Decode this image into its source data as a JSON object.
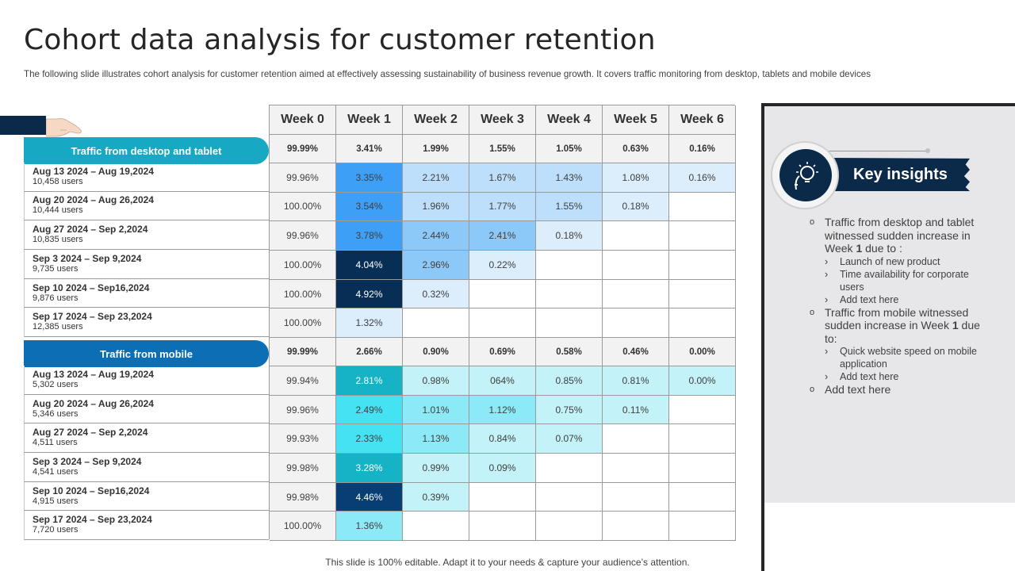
{
  "title": "Cohort data analysis for customer retention",
  "subtitle": "The following slide illustrates cohort analysis for customer retention aimed at effectively assessing sustainability of business revenue growth. It covers traffic monitoring from desktop, tablets and mobile devices",
  "footer": "This slide is 100% editable. Adapt it to your needs & capture your audience’s attention.",
  "weeks": [
    "Week 0",
    "Week 1",
    "Week 2",
    "Week 3",
    "Week 4",
    "Week 5",
    "Week 6"
  ],
  "groups": [
    {
      "label": "Traffic from desktop and tablet",
      "summary": [
        "99.99%",
        "3.41%",
        "1.99%",
        "1.55%",
        "1.05%",
        "0.63%",
        "0.16%"
      ],
      "rows": [
        {
          "date": "Aug 13 2024 – Aug 19,2024",
          "users": "10,458 users",
          "values": [
            "99.96%",
            "3.35%",
            "2.21%",
            "1.67%",
            "1.43%",
            "1.08%",
            "0.16%"
          ]
        },
        {
          "date": "Aug 20 2024 – Aug 26,2024",
          "users": "10,444 users",
          "values": [
            "100.00%",
            "3.54%",
            "1.96%",
            "1.77%",
            "1.55%",
            "0.18%",
            ""
          ]
        },
        {
          "date": "Aug 27 2024 – Sep 2,2024",
          "users": "10,835 users",
          "values": [
            "99.96%",
            "3.78%",
            "2.44%",
            "2.41%",
            "0.18%",
            "",
            ""
          ]
        },
        {
          "date": "Sep 3 2024 – Sep 9,2024",
          "users": "9,735 users",
          "values": [
            "100.00%",
            "4.04%",
            "2.96%",
            "0.22%",
            "",
            "",
            ""
          ]
        },
        {
          "date": "Sep 10 2024 – Sep16,2024",
          "users": "9,876 users",
          "values": [
            "100.00%",
            "4.92%",
            "0.32%",
            "",
            "",
            "",
            ""
          ]
        },
        {
          "date": "Sep 17 2024 – Sep 23,2024",
          "users": "12,385 users",
          "values": [
            "100.00%",
            "1.32%",
            "",
            "",
            "",
            "",
            ""
          ]
        }
      ],
      "colors": [
        [
          "#f2f2f2",
          "#3d9ff5",
          "#bddffc",
          "#bddffc",
          "#bddffc",
          "#dcedfb",
          "#dcedfb"
        ],
        [
          "#f2f2f2",
          "#3d9ff5",
          "#bddffc",
          "#bddffc",
          "#bddffc",
          "#dcedfb",
          "#ffffff"
        ],
        [
          "#f2f2f2",
          "#3d9ff5",
          "#8cc8f8",
          "#8cc8f8",
          "#dcedfb",
          "#ffffff",
          "#ffffff"
        ],
        [
          "#f2f2f2",
          "#072e55",
          "#8cc8f8",
          "#dcedfb",
          "#ffffff",
          "#ffffff",
          "#ffffff"
        ],
        [
          "#f2f2f2",
          "#072e55",
          "#dcedfb",
          "#ffffff",
          "#ffffff",
          "#ffffff",
          "#ffffff"
        ],
        [
          "#f2f2f2",
          "#dcedfb",
          "#ffffff",
          "#ffffff",
          "#ffffff",
          "#ffffff",
          "#ffffff"
        ]
      ]
    },
    {
      "label": "Traffic from mobile",
      "summary": [
        "99.99%",
        "2.66%",
        "0.90%",
        "0.69%",
        "0.58%",
        "0.46%",
        "0.00%"
      ],
      "rows": [
        {
          "date": "Aug 13 2024 – Aug 19,2024",
          "users": "5,302 users",
          "values": [
            "99.94%",
            "2.81%",
            "0.98%",
            "064%",
            "0.85%",
            "0.81%",
            "0.00%"
          ]
        },
        {
          "date": "Aug 20 2024 – Aug 26,2024",
          "users": "5,346 users",
          "values": [
            "99.96%",
            "2.49%",
            "1.01%",
            "1.12%",
            "0.75%",
            "0.11%",
            ""
          ]
        },
        {
          "date": "Aug 27 2024 – Sep 2,2024",
          "users": "4,511 users",
          "values": [
            "99.93%",
            "2.33%",
            "1.13%",
            "0.84%",
            "0.07%",
            "",
            ""
          ]
        },
        {
          "date": "Sep 3 2024 – Sep 9,2024",
          "users": "4,541 users",
          "values": [
            "99.98%",
            "3.28%",
            "0.99%",
            "0.09%",
            "",
            "",
            ""
          ]
        },
        {
          "date": "Sep 10 2024 – Sep16,2024",
          "users": "4,915 users",
          "values": [
            "99.98%",
            "4.46%",
            "0.39%",
            "",
            "",
            "",
            ""
          ]
        },
        {
          "date": "Sep 17 2024 – Sep 23,2024",
          "users": "7,720 users",
          "values": [
            "100.00%",
            "1.36%",
            "",
            "",
            "",
            "",
            ""
          ]
        }
      ],
      "colors": [
        [
          "#f2f2f2",
          "#16b2c6",
          "#c3f2f8",
          "#c3f2f8",
          "#c3f2f8",
          "#c3f2f8",
          "#c3f2f8"
        ],
        [
          "#f2f2f2",
          "#45e2f4",
          "#8ceaf6",
          "#8ceaf6",
          "#c3f2f8",
          "#c3f2f8",
          "#ffffff"
        ],
        [
          "#f2f2f2",
          "#45e2f4",
          "#8ceaf6",
          "#c3f2f8",
          "#c3f2f8",
          "#ffffff",
          "#ffffff"
        ],
        [
          "#f2f2f2",
          "#16b2c6",
          "#c3f2f8",
          "#c3f2f8",
          "#ffffff",
          "#ffffff",
          "#ffffff"
        ],
        [
          "#f2f2f2",
          "#073e74",
          "#c3f2f8",
          "#ffffff",
          "#ffffff",
          "#ffffff",
          "#ffffff"
        ],
        [
          "#f2f2f2",
          "#8ceaf6",
          "#ffffff",
          "#ffffff",
          "#ffffff",
          "#ffffff",
          "#ffffff"
        ]
      ]
    }
  ],
  "insights": {
    "title": "Key insights",
    "icon": "lightbulb-head-icon",
    "items": [
      {
        "pre": "Traffic from desktop and tablet witnessed sudden increase in Week ",
        "bold": "1",
        "post": " due to :",
        "subs": [
          "Launch of new product",
          "Time availability for corporate users",
          "Add text here"
        ]
      },
      {
        "pre": "Traffic from mobile witnessed sudden increase in Week ",
        "bold": "1",
        "post": " due to:",
        "subs": [
          "Quick website speed on mobile application",
          "Add text here"
        ]
      },
      {
        "pre": "Add text here",
        "bold": "",
        "post": "",
        "subs": []
      }
    ]
  }
}
